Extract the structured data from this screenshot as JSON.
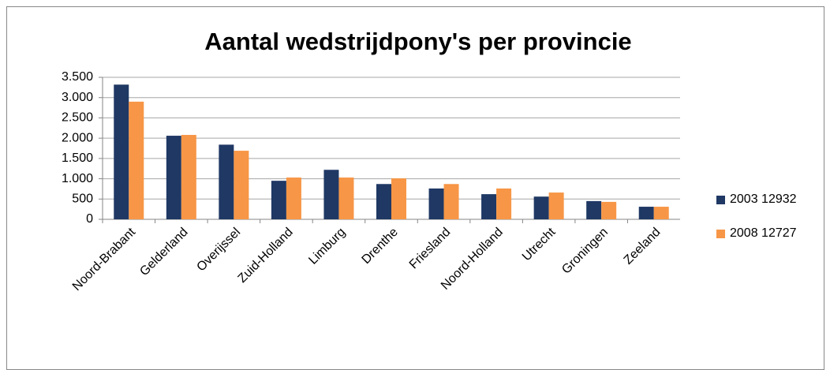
{
  "chart_data": {
    "type": "bar",
    "title": "Aantal wedstrijdpony's per provincie",
    "categories": [
      "Noord-Brabant",
      "Gelderland",
      "Overijssel",
      "Zuid-Holland",
      "Limburg",
      "Drenthe",
      "Friesland",
      "Noord-Holland",
      "Utrecht",
      "Groningen",
      "Zeeland"
    ],
    "series": [
      {
        "name": "2003 12932",
        "color": "#1f3864",
        "values": [
          3320,
          2060,
          1840,
          950,
          1220,
          870,
          760,
          620,
          560,
          450,
          310
        ]
      },
      {
        "name": "2008 12727",
        "color": "#f79646",
        "values": [
          2900,
          2080,
          1690,
          1030,
          1030,
          1010,
          870,
          760,
          660,
          430,
          310
        ]
      }
    ],
    "ylim": [
      0,
      3500
    ],
    "yticks": [
      0,
      500,
      {
        "value": 1000,
        "label": "1.000"
      },
      {
        "value": 1500,
        "label": "1.500"
      },
      {
        "value": 2000,
        "label": "2.000"
      },
      {
        "value": 2500,
        "label": "2.500"
      },
      {
        "value": 3000,
        "label": "3.000"
      },
      {
        "value": 3500,
        "label": "3.500"
      }
    ],
    "grid": true,
    "legend": "right"
  }
}
